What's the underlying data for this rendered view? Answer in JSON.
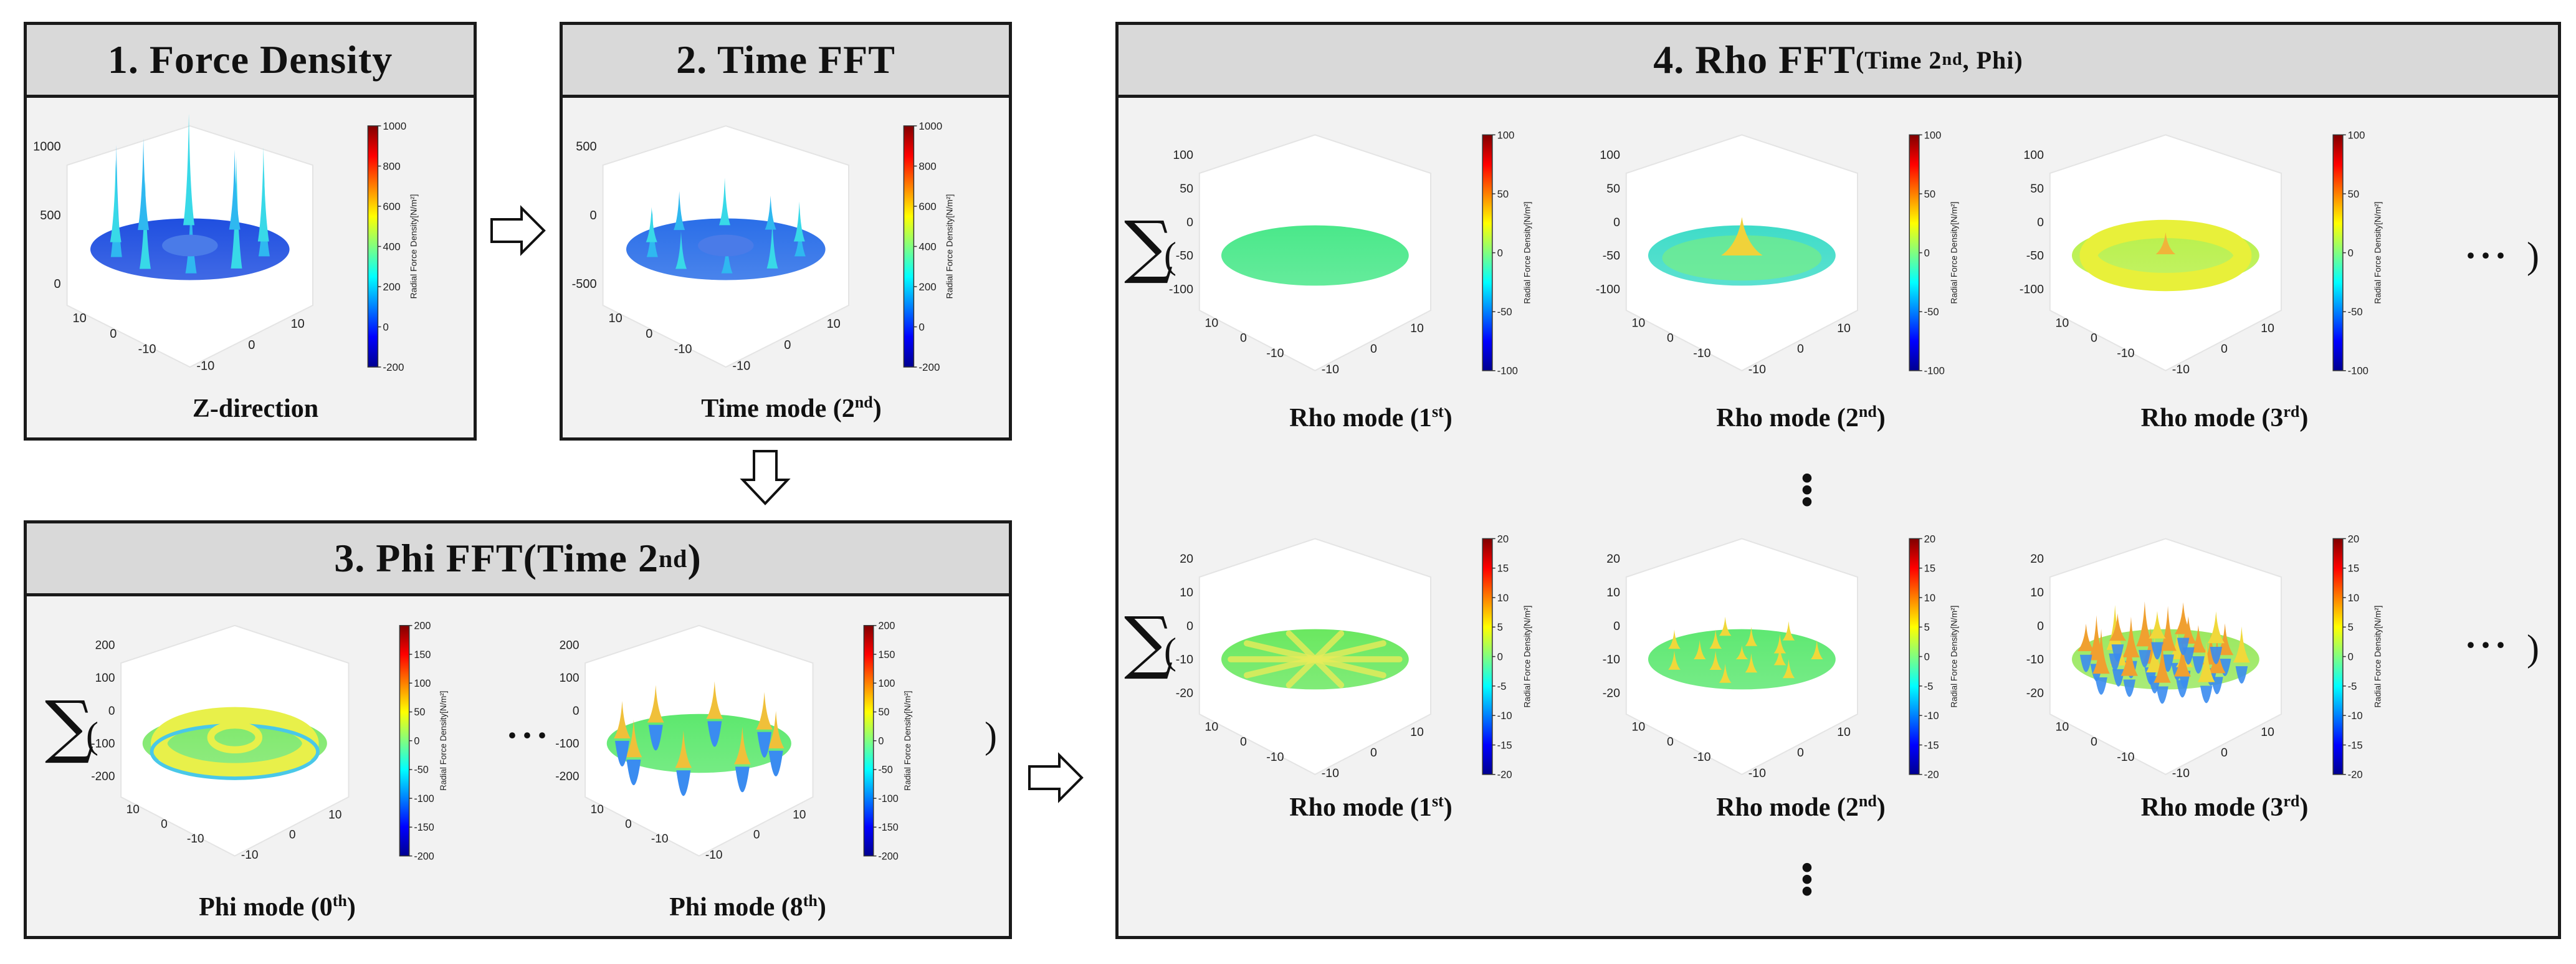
{
  "panels": {
    "p1": {
      "title": "1. Force Density"
    },
    "p2": {
      "title": "2. Time FFT"
    },
    "p3": {
      "title_main": "3. Phi FFT(Time 2",
      "title_sup": "nd",
      "title_end": ")"
    },
    "p4": {
      "title_main": "4. Rho FFT",
      "title_sub_a": "(Time 2",
      "title_sub_sup": "nd",
      "title_sub_b": ", Phi)"
    }
  },
  "captions": {
    "z_direction": "Z-direction",
    "time_mode": {
      "text": "Time mode (2",
      "sup": "nd",
      "end": ")"
    },
    "phi0": {
      "text": "Phi mode (0",
      "sup": "th",
      "end": ")"
    },
    "phi8": {
      "text": "Phi mode (8",
      "sup": "th",
      "end": ")"
    },
    "rho1": {
      "text": "Rho mode (1",
      "sup": "st",
      "end": ")"
    },
    "rho2": {
      "text": "Rho mode (2",
      "sup": "nd",
      "end": ")"
    },
    "rho3": {
      "text": "Rho mode (3",
      "sup": "rd",
      "end": ")"
    }
  },
  "symbols": {
    "sum": "∑",
    "open_paren": "(",
    "close_paren": ")",
    "hdots": "···",
    "vdots": "⋮"
  },
  "colorbar_label": "Radial Force Density[N/m²]",
  "colormap": [
    "#00008f",
    "#0000ff",
    "#0080ff",
    "#00ffff",
    "#80ff80",
    "#ffff00",
    "#ff8000",
    "#ff0000",
    "#800000"
  ],
  "plots": [
    {
      "id": "p1",
      "z_ticks": [
        "1000",
        "500",
        "0"
      ],
      "cbar_ticks": [
        "1000",
        "800",
        "600",
        "400",
        "200",
        "0",
        "-200"
      ],
      "x_ticks": [
        "10",
        "0",
        "-10"
      ],
      "y_ticks": [
        "-10",
        "0",
        "10"
      ],
      "surface": "spikes",
      "base_color": "#1f4fe0"
    },
    {
      "id": "p2",
      "z_ticks": [
        "500",
        "0",
        "-500"
      ],
      "cbar_ticks": [
        "1000",
        "800",
        "600",
        "400",
        "200",
        "0",
        "-200"
      ],
      "x_ticks": [
        "10",
        "0",
        "-10"
      ],
      "y_ticks": [
        "-10",
        "0",
        "10"
      ],
      "surface": "spikes-small",
      "base_color": "#2a6ee8"
    },
    {
      "id": "p3a",
      "z_ticks": [
        "200",
        "100",
        "0",
        "-100",
        "-200"
      ],
      "cbar_ticks": [
        "200",
        "150",
        "100",
        "50",
        "0",
        "-50",
        "-100",
        "-150",
        "-200"
      ],
      "x_ticks": [
        "10",
        "0",
        "-10"
      ],
      "y_ticks": [
        "-10",
        "0",
        "10"
      ],
      "surface": "ring",
      "base_color": "#7de86a"
    },
    {
      "id": "p3b",
      "z_ticks": [
        "200",
        "100",
        "0",
        "-100",
        "-200"
      ],
      "cbar_ticks": [
        "200",
        "150",
        "100",
        "50",
        "0",
        "-50",
        "-100",
        "-150",
        "-200"
      ],
      "x_ticks": [
        "10",
        "0",
        "-10"
      ],
      "y_ticks": [
        "-10",
        "0",
        "10"
      ],
      "surface": "lobes",
      "base_color": "#5de86e"
    },
    {
      "id": "p4a",
      "z_ticks": [
        "100",
        "50",
        "0",
        "-50",
        "-100"
      ],
      "cbar_ticks": [
        "100",
        "50",
        "0",
        "-50",
        "-100"
      ],
      "x_ticks": [
        "10",
        "0",
        "-10"
      ],
      "y_ticks": [
        "-10",
        "0",
        "10"
      ],
      "surface": "flat",
      "base_color": "#4ae88a"
    },
    {
      "id": "p4b",
      "z_ticks": [
        "100",
        "50",
        "0",
        "-50",
        "-100"
      ],
      "cbar_ticks": [
        "100",
        "50",
        "0",
        "-50",
        "-100"
      ],
      "x_ticks": [
        "10",
        "0",
        "-10"
      ],
      "y_ticks": [
        "-10",
        "0",
        "10"
      ],
      "surface": "bump",
      "base_color": "#3fdcc8"
    },
    {
      "id": "p4c",
      "z_ticks": [
        "100",
        "50",
        "0",
        "-50",
        "-100"
      ],
      "cbar_ticks": [
        "100",
        "50",
        "0",
        "-50",
        "-100"
      ],
      "x_ticks": [
        "10",
        "0",
        "-10"
      ],
      "y_ticks": [
        "-10",
        "0",
        "10"
      ],
      "surface": "torus",
      "base_color": "#b8f04a"
    },
    {
      "id": "p4d",
      "z_ticks": [
        "20",
        "10",
        "0",
        "-10",
        "-20"
      ],
      "cbar_ticks": [
        "20",
        "15",
        "10",
        "5",
        "0",
        "-5",
        "-10",
        "-15",
        "-20"
      ],
      "x_ticks": [
        "10",
        "0",
        "-10"
      ],
      "y_ticks": [
        "-10",
        "0",
        "10"
      ],
      "surface": "petals",
      "base_color": "#6ae860"
    },
    {
      "id": "p4e",
      "z_ticks": [
        "20",
        "10",
        "0",
        "-10",
        "-20"
      ],
      "cbar_ticks": [
        "20",
        "15",
        "10",
        "5",
        "0",
        "-5",
        "-10",
        "-15",
        "-20"
      ],
      "x_ticks": [
        "10",
        "0",
        "-10"
      ],
      "y_ticks": [
        "-10",
        "0",
        "10"
      ],
      "surface": "bumps",
      "base_color": "#5ee872"
    },
    {
      "id": "p4f",
      "z_ticks": [
        "20",
        "10",
        "0",
        "-10",
        "-20"
      ],
      "cbar_ticks": [
        "20",
        "15",
        "10",
        "5",
        "0",
        "-5",
        "-10",
        "-15",
        "-20"
      ],
      "x_ticks": [
        "10",
        "0",
        "-10"
      ],
      "y_ticks": [
        "-10",
        "0",
        "10"
      ],
      "surface": "rough",
      "base_color": "#9ae860"
    }
  ]
}
